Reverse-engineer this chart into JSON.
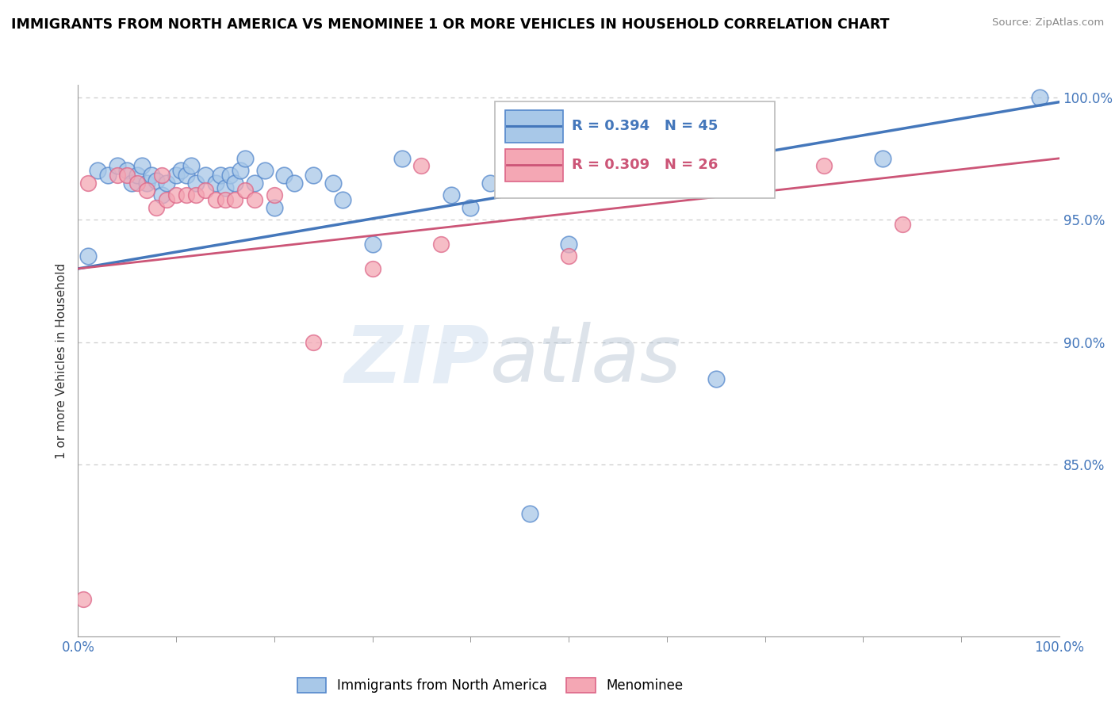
{
  "title": "IMMIGRANTS FROM NORTH AMERICA VS MENOMINEE 1 OR MORE VEHICLES IN HOUSEHOLD CORRELATION CHART",
  "source": "Source: ZipAtlas.com",
  "ylabel": "1 or more Vehicles in Household",
  "xlim": [
    0.0,
    1.0
  ],
  "ylim": [
    0.78,
    1.005
  ],
  "x_tick_labels": [
    "0.0%",
    "100.0%"
  ],
  "y_tick_labels": [
    "85.0%",
    "90.0%",
    "95.0%",
    "100.0%"
  ],
  "y_tick_values": [
    0.85,
    0.9,
    0.95,
    1.0
  ],
  "blue_R": "R = 0.394",
  "blue_N": "N = 45",
  "pink_R": "R = 0.309",
  "pink_N": "N = 26",
  "blue_color": "#A8C8E8",
  "pink_color": "#F4A7B4",
  "blue_edge_color": "#5588CC",
  "pink_edge_color": "#DD6688",
  "blue_line_color": "#4477BB",
  "pink_line_color": "#CC5577",
  "legend_label_blue": "Immigrants from North America",
  "legend_label_pink": "Menominee",
  "watermark_zip": "ZIP",
  "watermark_atlas": "atlas",
  "background_color": "#FFFFFF",
  "grid_color": "#CCCCCC",
  "blue_scatter_x": [
    0.01,
    0.02,
    0.03,
    0.04,
    0.05,
    0.055,
    0.06,
    0.065,
    0.07,
    0.075,
    0.08,
    0.085,
    0.09,
    0.1,
    0.105,
    0.11,
    0.115,
    0.12,
    0.13,
    0.14,
    0.145,
    0.15,
    0.155,
    0.16,
    0.165,
    0.17,
    0.18,
    0.19,
    0.2,
    0.21,
    0.22,
    0.24,
    0.26,
    0.27,
    0.3,
    0.33,
    0.38,
    0.4,
    0.42,
    0.44,
    0.46,
    0.5,
    0.65,
    0.82,
    0.98
  ],
  "blue_scatter_y": [
    0.935,
    0.97,
    0.968,
    0.972,
    0.97,
    0.965,
    0.968,
    0.972,
    0.965,
    0.968,
    0.966,
    0.96,
    0.965,
    0.968,
    0.97,
    0.968,
    0.972,
    0.965,
    0.968,
    0.965,
    0.968,
    0.963,
    0.968,
    0.965,
    0.97,
    0.975,
    0.965,
    0.97,
    0.955,
    0.968,
    0.965,
    0.968,
    0.965,
    0.958,
    0.94,
    0.975,
    0.96,
    0.955,
    0.965,
    0.97,
    0.83,
    0.94,
    0.885,
    0.975,
    1.0
  ],
  "pink_scatter_x": [
    0.005,
    0.01,
    0.04,
    0.05,
    0.06,
    0.07,
    0.08,
    0.085,
    0.09,
    0.1,
    0.11,
    0.12,
    0.13,
    0.14,
    0.15,
    0.16,
    0.17,
    0.18,
    0.2,
    0.24,
    0.3,
    0.35,
    0.37,
    0.5,
    0.76,
    0.84
  ],
  "pink_scatter_y": [
    0.795,
    0.965,
    0.968,
    0.968,
    0.965,
    0.962,
    0.955,
    0.968,
    0.958,
    0.96,
    0.96,
    0.96,
    0.962,
    0.958,
    0.958,
    0.958,
    0.962,
    0.958,
    0.96,
    0.9,
    0.93,
    0.972,
    0.94,
    0.935,
    0.972,
    0.948
  ],
  "blue_line_x0": 0.0,
  "blue_line_y0": 0.93,
  "blue_line_x1": 1.0,
  "blue_line_y1": 0.998,
  "pink_line_x0": 0.0,
  "pink_line_y0": 0.93,
  "pink_line_x1": 1.0,
  "pink_line_y1": 0.975
}
